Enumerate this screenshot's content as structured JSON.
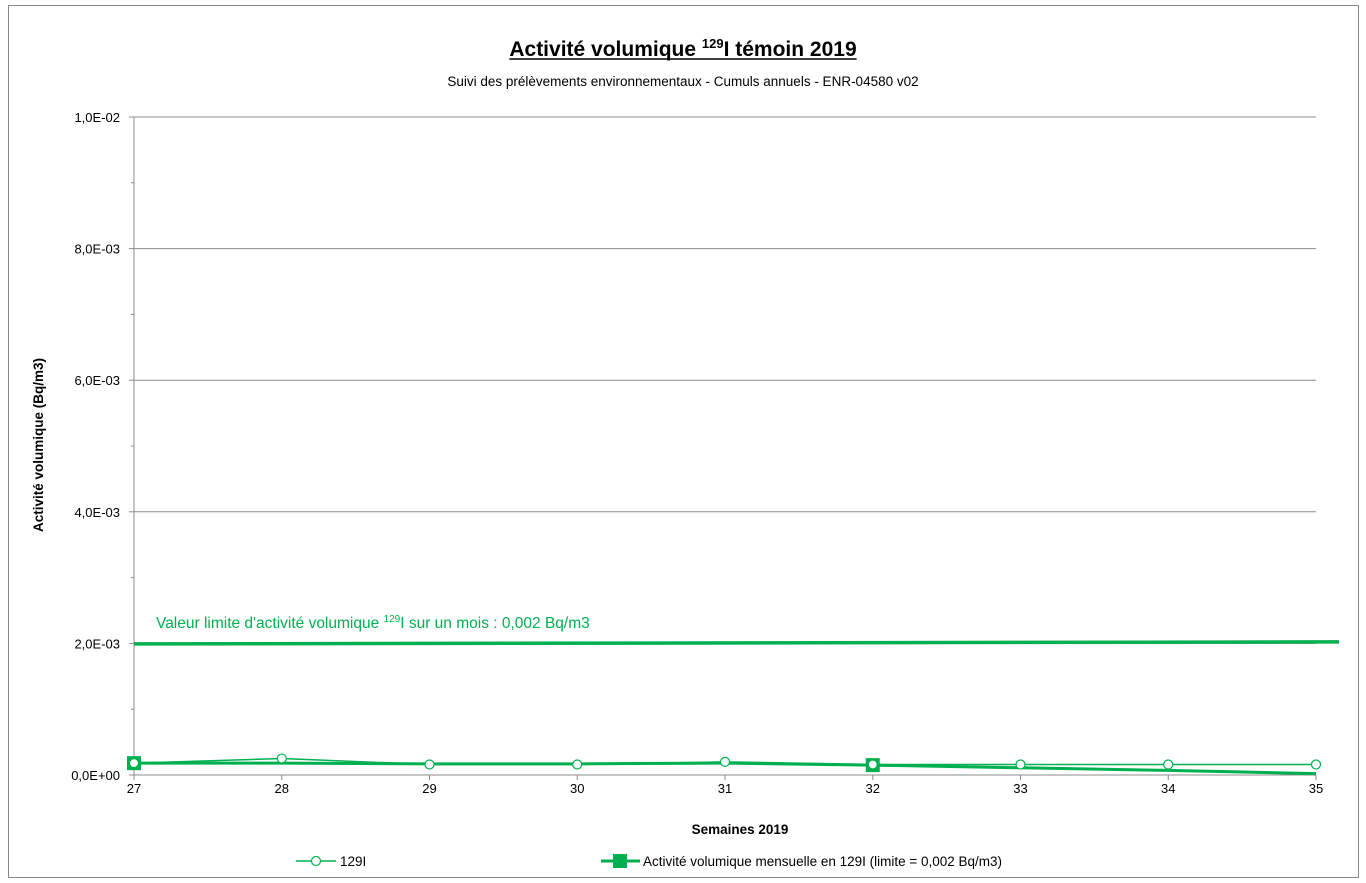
{
  "chart_data": {
    "type": "line",
    "title": "Activité volumique ¹²⁹I témoin 2019",
    "title_parts": [
      "Activité volumique ",
      "129",
      "I témoin 2019"
    ],
    "subtitle": "Suivi des prélèvements environnementaux - Cumuls annuels - ENR-04580 v02",
    "xlabel": "Semaines 2019",
    "ylabel": "Activité volumique (Bq/m3)",
    "xlim": [
      27,
      35
    ],
    "ylim": [
      0,
      0.01
    ],
    "x_ticks": [
      27,
      28,
      29,
      30,
      31,
      32,
      33,
      34,
      35
    ],
    "y_ticks": [
      {
        "value": 0,
        "label": "0,0E+00"
      },
      {
        "value": 0.002,
        "label": "2,0E-03"
      },
      {
        "value": 0.004,
        "label": "4,0E-03"
      },
      {
        "value": 0.006,
        "label": "6,0E-03"
      },
      {
        "value": 0.008,
        "label": "8,0E-03"
      },
      {
        "value": 0.01,
        "label": "1,0E-02"
      }
    ],
    "grid": true,
    "legend_position": "bottom",
    "series": [
      {
        "name": "129I",
        "marker": "open-circle",
        "color": "#00B050",
        "x": [
          27,
          28,
          29,
          30,
          31,
          32,
          33,
          34,
          35
        ],
        "y": [
          0.00018,
          0.00025,
          0.00016,
          0.00016,
          0.0002,
          0.00016,
          0.00016,
          0.00016,
          0.00016
        ]
      },
      {
        "name": "Activité volumique mensuelle en 129I  (limite = 0,002 Bq/m3)",
        "marker": "filled-square",
        "marker_x": [
          27,
          32
        ],
        "color": "#00B050",
        "x": [
          27,
          28,
          29,
          30,
          31,
          32,
          33,
          34,
          35
        ],
        "y": [
          0.00018,
          0.00018,
          0.00017,
          0.00017,
          0.00018,
          0.00015,
          0.00011,
          7e-05,
          2e-05
        ]
      }
    ],
    "limit_line": {
      "value": 0.002,
      "color": "#00B050",
      "label_parts": [
        "Valeur limite d'activité volumique ",
        "129",
        "I sur un mois : 0,002 Bq/m3"
      ]
    }
  }
}
